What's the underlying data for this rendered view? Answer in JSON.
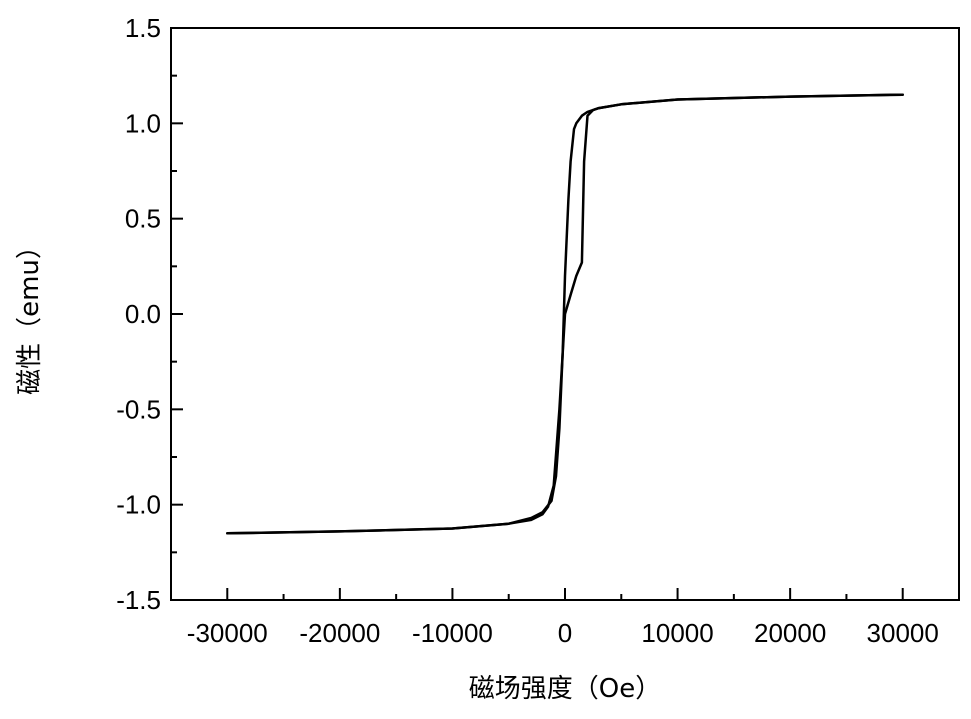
{
  "chart_data": {
    "type": "line",
    "title": "",
    "xlabel": "磁场强度（Oe）",
    "ylabel": "磁性（emu）",
    "xlim": [
      -35000,
      35000
    ],
    "ylim": [
      -1.5,
      1.5
    ],
    "xticks": [
      -30000,
      -20000,
      -10000,
      0,
      10000,
      20000,
      30000
    ],
    "xtick_labels": [
      "-30000",
      "-20000",
      "-10000",
      "0",
      "10000",
      "20000",
      "30000"
    ],
    "yticks": [
      1.5,
      1.0,
      0.5,
      0.0,
      -0.5,
      -1.0,
      -1.5
    ],
    "ytick_labels": [
      "1.5",
      "1.0",
      "0.5",
      "0.0",
      "-0.5",
      "-1.0",
      "-1.5"
    ],
    "grid": false,
    "legend": "none",
    "colors": {
      "line": "#000000",
      "axes": "#000000",
      "background": "#ffffff"
    },
    "series": [
      {
        "x": [
          30000,
          20000,
          10000,
          5000,
          3000,
          2000,
          1500,
          1000,
          800,
          500,
          300,
          0,
          -200,
          -500,
          -800,
          -1200,
          -2000,
          -3000,
          -5000,
          -10000,
          -20000,
          -30000
        ],
        "y": [
          1.15,
          1.14,
          1.125,
          1.1,
          1.08,
          1.06,
          1.04,
          1.0,
          0.97,
          0.8,
          0.6,
          0.2,
          -0.2,
          -0.6,
          -0.85,
          -0.98,
          -1.04,
          -1.07,
          -1.1,
          -1.125,
          -1.14,
          -1.15
        ]
      },
      {
        "x": [
          -30000,
          -20000,
          -10000,
          -5000,
          -3000,
          -2000,
          -1500,
          -1000,
          -500,
          0,
          500,
          1000,
          1500,
          1700,
          2000,
          2500,
          3000,
          5000,
          10000,
          20000,
          30000
        ],
        "y": [
          -1.15,
          -1.14,
          -1.125,
          -1.1,
          -1.08,
          -1.05,
          -1.01,
          -0.9,
          -0.5,
          0.0,
          0.1,
          0.2,
          0.27,
          0.8,
          1.04,
          1.07,
          1.08,
          1.1,
          1.125,
          1.14,
          1.15
        ]
      }
    ]
  }
}
